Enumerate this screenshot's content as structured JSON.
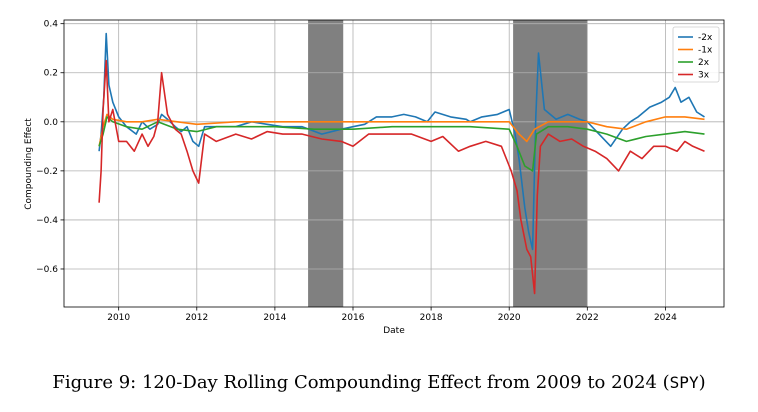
{
  "chart_data": {
    "type": "line",
    "title": "",
    "xlabel": "Date",
    "ylabel": "Compounding Effect",
    "xlim": [
      2008.6,
      2025.5
    ],
    "ylim": [
      -0.755,
      0.415
    ],
    "grid": true,
    "legend_position": "top-right",
    "x_ticks": [
      2010,
      2012,
      2014,
      2016,
      2018,
      2020,
      2022,
      2024
    ],
    "x_tick_labels": [
      "2010",
      "2012",
      "2014",
      "2016",
      "2018",
      "2020",
      "2022",
      "2024"
    ],
    "y_ticks": [
      0.4,
      0.2,
      0.0,
      -0.2,
      -0.4,
      -0.6
    ],
    "y_tick_labels": [
      "0.4",
      "0.2",
      "0.0",
      "−0.2",
      "−0.4",
      "−0.6"
    ],
    "shaded_periods": [
      {
        "start": 2014.85,
        "end": 2015.75,
        "color": "#808080"
      },
      {
        "start": 2020.1,
        "end": 2022.0,
        "color": "#808080"
      }
    ],
    "series": [
      {
        "name": "-2x",
        "color": "#1f77b4",
        "x": [
          2009.5,
          2009.55,
          2009.62,
          2009.68,
          2009.75,
          2009.85,
          2010.0,
          2010.2,
          2010.45,
          2010.6,
          2010.8,
          2011.0,
          2011.1,
          2011.25,
          2011.45,
          2011.6,
          2011.75,
          2011.9,
          2012.05,
          2012.2,
          2012.5,
          2013.0,
          2013.4,
          2013.8,
          2014.2,
          2014.7,
          2015.2,
          2015.7,
          2016.0,
          2016.3,
          2016.6,
          2017.0,
          2017.3,
          2017.6,
          2017.9,
          2018.1,
          2018.5,
          2018.9,
          2019.0,
          2019.3,
          2019.7,
          2020.0,
          2020.15,
          2020.25,
          2020.4,
          2020.5,
          2020.6,
          2020.68,
          2020.75,
          2020.9,
          2021.2,
          2021.5,
          2021.8,
          2022.0,
          2022.3,
          2022.6,
          2022.9,
          2023.1,
          2023.3,
          2023.6,
          2023.9,
          2024.1,
          2024.25,
          2024.4,
          2024.6,
          2024.8,
          2025.0
        ],
        "values": [
          -0.12,
          -0.05,
          0.1,
          0.36,
          0.15,
          0.08,
          0.02,
          -0.02,
          -0.05,
          0.0,
          -0.03,
          -0.01,
          0.03,
          0.01,
          -0.02,
          -0.04,
          -0.02,
          -0.08,
          -0.1,
          -0.02,
          -0.02,
          -0.02,
          0.0,
          -0.01,
          -0.02,
          -0.02,
          -0.05,
          -0.03,
          -0.02,
          -0.01,
          0.02,
          0.02,
          0.03,
          0.02,
          0.0,
          0.04,
          0.02,
          0.01,
          0.0,
          0.02,
          0.03,
          0.05,
          -0.05,
          -0.15,
          -0.35,
          -0.45,
          -0.52,
          0.02,
          0.28,
          0.05,
          0.01,
          0.03,
          0.01,
          0.0,
          -0.05,
          -0.1,
          -0.03,
          0.0,
          0.02,
          0.06,
          0.08,
          0.1,
          0.14,
          0.08,
          0.1,
          0.04,
          0.02
        ]
      },
      {
        "name": "-1x",
        "color": "#ff7f0e",
        "x": [
          2009.5,
          2009.6,
          2009.7,
          2009.85,
          2010.2,
          2010.6,
          2011.0,
          2011.5,
          2012.0,
          2013.0,
          2014.0,
          2015.0,
          2016.0,
          2017.0,
          2018.0,
          2019.0,
          2020.0,
          2020.25,
          2020.45,
          2020.65,
          2021.0,
          2021.5,
          2022.0,
          2022.5,
          2023.0,
          2023.5,
          2024.0,
          2024.5,
          2025.0
        ],
        "values": [
          -0.1,
          -0.02,
          0.03,
          0.01,
          0.0,
          0.0,
          0.01,
          0.0,
          -0.01,
          0.0,
          0.0,
          0.0,
          0.0,
          0.0,
          0.0,
          0.0,
          0.0,
          -0.05,
          -0.08,
          -0.03,
          0.0,
          0.0,
          0.0,
          -0.02,
          -0.03,
          0.0,
          0.02,
          0.02,
          0.01
        ]
      },
      {
        "name": "2x",
        "color": "#2ca02c",
        "x": [
          2009.5,
          2009.6,
          2009.7,
          2009.85,
          2010.2,
          2010.6,
          2011.0,
          2011.5,
          2012.0,
          2012.5,
          2013.0,
          2014.0,
          2015.0,
          2016.0,
          2017.0,
          2018.0,
          2019.0,
          2020.0,
          2020.2,
          2020.4,
          2020.6,
          2020.7,
          2021.0,
          2021.5,
          2022.0,
          2022.5,
          2023.0,
          2023.5,
          2024.0,
          2024.5,
          2025.0
        ],
        "values": [
          -0.1,
          -0.05,
          0.02,
          0.0,
          -0.02,
          -0.03,
          0.0,
          -0.03,
          -0.04,
          -0.02,
          -0.02,
          -0.02,
          -0.03,
          -0.03,
          -0.02,
          -0.02,
          -0.02,
          -0.03,
          -0.1,
          -0.18,
          -0.2,
          -0.05,
          -0.02,
          -0.02,
          -0.03,
          -0.05,
          -0.08,
          -0.06,
          -0.05,
          -0.04,
          -0.05
        ]
      },
      {
        "name": "3x",
        "color": "#d62728",
        "x": [
          2009.5,
          2009.55,
          2009.6,
          2009.68,
          2009.75,
          2009.85,
          2010.0,
          2010.2,
          2010.4,
          2010.6,
          2010.75,
          2010.9,
          2011.0,
          2011.1,
          2011.25,
          2011.45,
          2011.6,
          2011.75,
          2011.9,
          2012.05,
          2012.2,
          2012.5,
          2013.0,
          2013.4,
          2013.8,
          2014.2,
          2014.7,
          2015.2,
          2015.7,
          2016.0,
          2016.4,
          2017.0,
          2017.5,
          2018.0,
          2018.3,
          2018.7,
          2019.0,
          2019.4,
          2019.8,
          2020.05,
          2020.2,
          2020.3,
          2020.45,
          2020.55,
          2020.65,
          2020.72,
          2020.8,
          2021.0,
          2021.3,
          2021.6,
          2021.9,
          2022.2,
          2022.5,
          2022.8,
          2023.1,
          2023.4,
          2023.7,
          2024.0,
          2024.3,
          2024.5,
          2024.7,
          2025.0
        ],
        "values": [
          -0.33,
          -0.2,
          0.05,
          0.25,
          0.0,
          0.05,
          -0.08,
          -0.08,
          -0.12,
          -0.05,
          -0.1,
          -0.06,
          0.0,
          0.2,
          0.03,
          -0.03,
          -0.05,
          -0.12,
          -0.2,
          -0.25,
          -0.05,
          -0.08,
          -0.05,
          -0.07,
          -0.04,
          -0.05,
          -0.05,
          -0.07,
          -0.08,
          -0.1,
          -0.05,
          -0.05,
          -0.05,
          -0.08,
          -0.06,
          -0.12,
          -0.1,
          -0.08,
          -0.1,
          -0.2,
          -0.28,
          -0.4,
          -0.52,
          -0.55,
          -0.7,
          -0.3,
          -0.1,
          -0.05,
          -0.08,
          -0.07,
          -0.1,
          -0.12,
          -0.15,
          -0.2,
          -0.12,
          -0.15,
          -0.1,
          -0.1,
          -0.12,
          -0.08,
          -0.1,
          -0.12
        ]
      }
    ]
  },
  "caption": {
    "text": "Figure 9: 120-Day Rolling Compounding Effect from 2009 to 2024 (",
    "ticker": "SPY",
    "close": ")"
  }
}
